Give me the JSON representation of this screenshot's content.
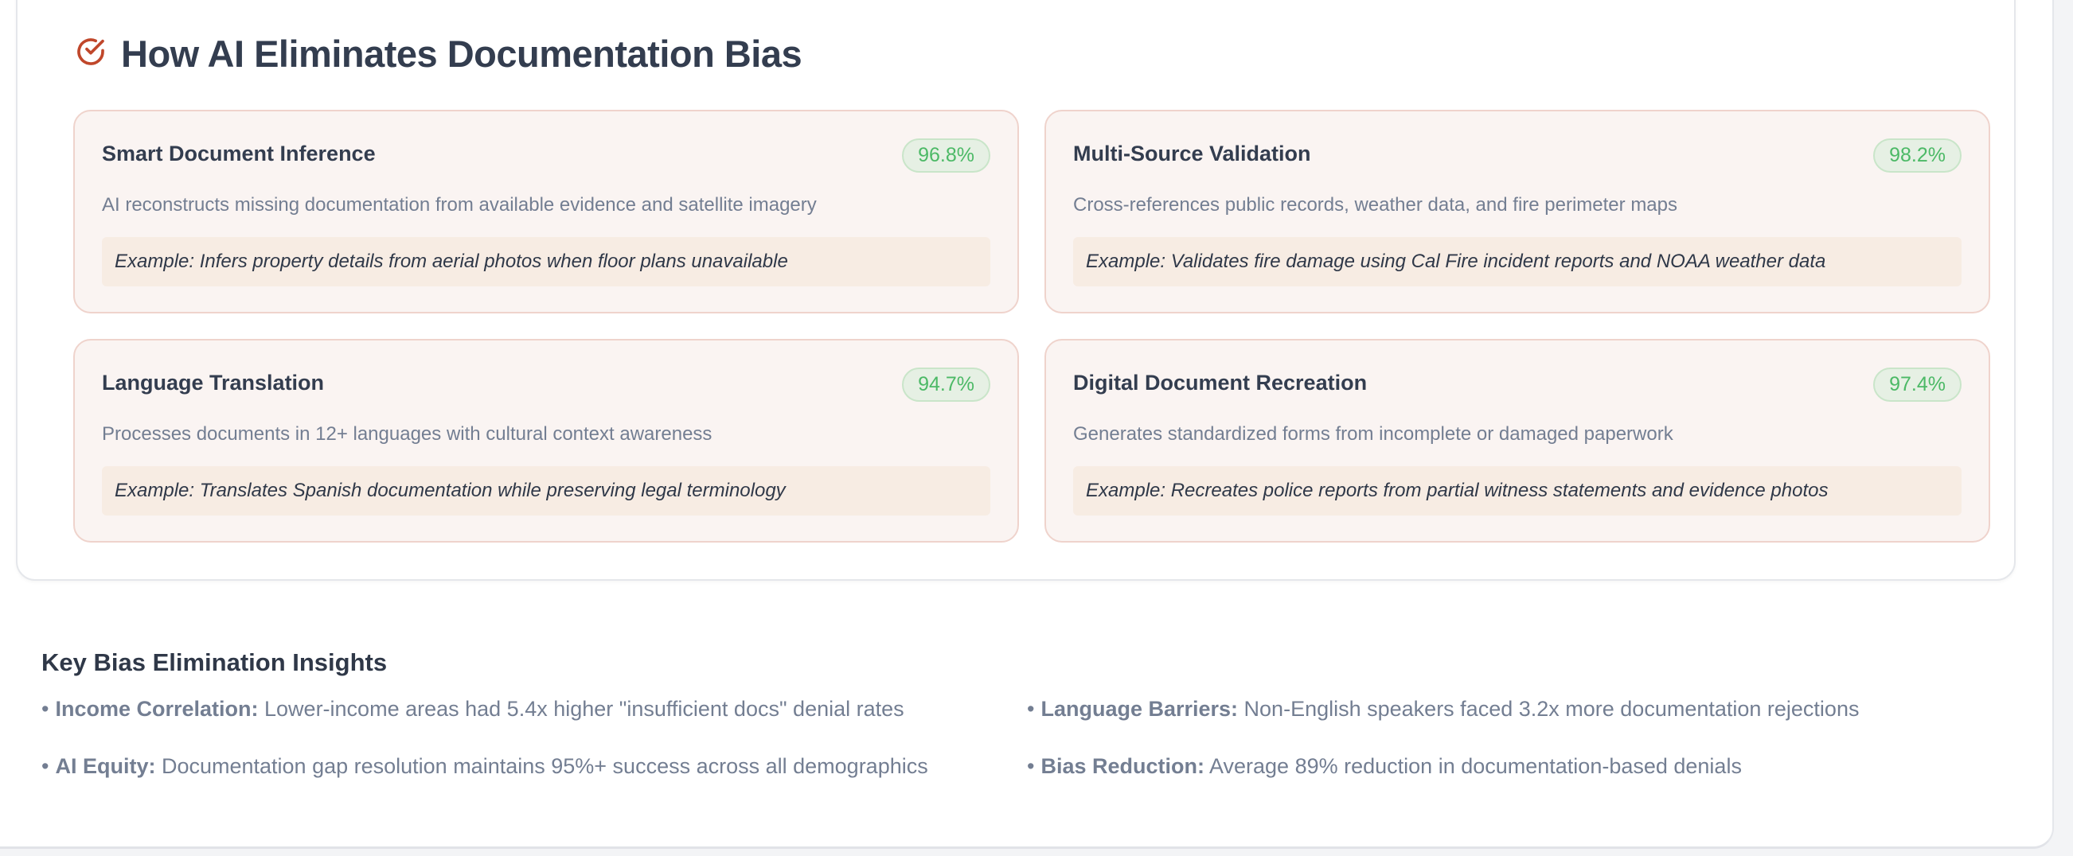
{
  "section": {
    "title": "How AI Eliminates Documentation Bias",
    "icon": "check-circle-icon",
    "accent_color": "#c0472b",
    "cards": [
      {
        "title": "Smart Document Inference",
        "rate": "96.8%",
        "description": "AI reconstructs missing documentation from available evidence and satellite imagery",
        "example": "Example: Infers property details from aerial photos when floor plans unavailable"
      },
      {
        "title": "Multi-Source Validation",
        "rate": "98.2%",
        "description": "Cross-references public records, weather data, and fire perimeter maps",
        "example": "Example: Validates fire damage using Cal Fire incident reports and NOAA weather data"
      },
      {
        "title": "Language Translation",
        "rate": "94.7%",
        "description": "Processes documents in 12+ languages with cultural context awareness",
        "example": "Example: Translates Spanish documentation while preserving legal terminology"
      },
      {
        "title": "Digital Document Recreation",
        "rate": "97.4%",
        "description": "Generates standardized forms from incomplete or damaged paperwork",
        "example": "Example: Recreates police reports from partial witness statements and evidence photos"
      }
    ]
  },
  "insights": {
    "title": "Key Bias Elimination Insights",
    "bullet": "•",
    "items": [
      {
        "label": "Income Correlation:",
        "text": "Lower-income areas had 5.4x higher \"insufficient docs\" denial rates"
      },
      {
        "label": "Language Barriers:",
        "text": "Non-English speakers faced 3.2x more documentation rejections"
      },
      {
        "label": "AI Equity:",
        "text": "Documentation gap resolution maintains 95%+ success across all demographics"
      },
      {
        "label": "Bias Reduction:",
        "text": "Average 89% reduction in documentation-based denials"
      }
    ]
  }
}
